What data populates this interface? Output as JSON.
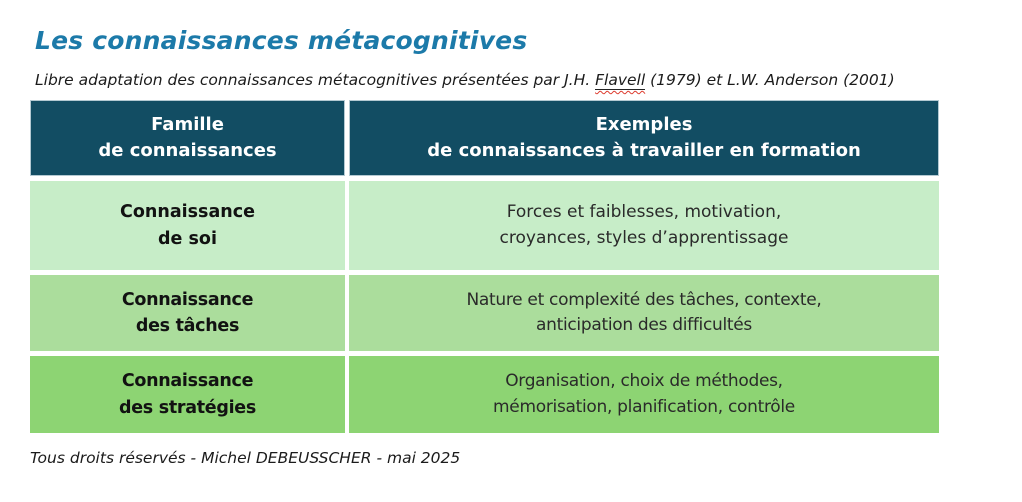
{
  "page": {
    "title": "Les connaissances métacognitives",
    "subtitle_prefix": "Libre adaptation des connaissances métacognitives présentées par J.H. ",
    "subtitle_flavell": "Flavell",
    "subtitle_suffix": " (1979) et L.W. Anderson (2001)",
    "footer": "Tous droits réservés - Michel DEBEUSSCHER - mai 2025"
  },
  "table": {
    "header_left": {
      "line1": "Famille",
      "line2": "de connaissances"
    },
    "header_right": {
      "line1": "Exemples",
      "line2": "de connaissances à travailler en formation"
    },
    "rows": [
      {
        "family_line1": "Connaissance",
        "family_line2": "de soi",
        "examples_line1": "Forces et faiblesses, motivation,",
        "examples_line2": "croyances, styles d’apprentissage"
      },
      {
        "family_line1": "Connaissance",
        "family_line2": "des tâches",
        "examples_line1": "Nature et complexité des tâches, contexte,",
        "examples_line2": "anticipation des difficultés"
      },
      {
        "family_line1": "Connaissance",
        "family_line2": "des stratégies",
        "examples_line1": "Organisation, choix de méthodes,",
        "examples_line2": "mémorisation, planification, contrôle"
      }
    ]
  },
  "colors": {
    "title_text": "#1c7aa9",
    "header_bg": "#124d63",
    "header_border": "#b3c9d2",
    "header_text": "#ffffff",
    "row1_bg": "#c7edc8",
    "row2_bg": "#abdd9c",
    "row3_bg": "#8dd473",
    "body_text": "#2a2a2a",
    "spellcheck_wavy": "#dd3b2e"
  }
}
